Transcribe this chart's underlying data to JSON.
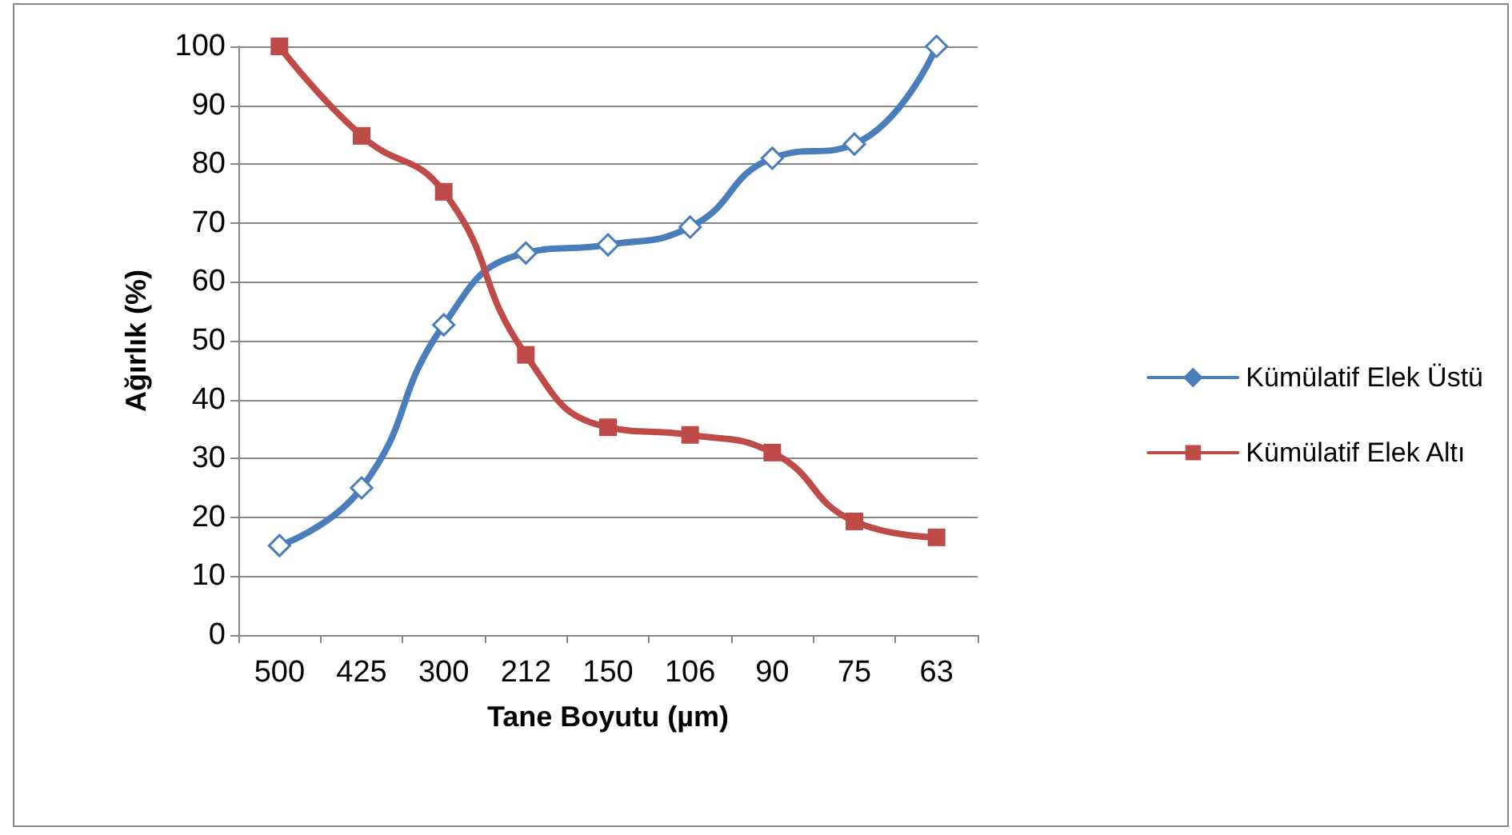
{
  "chart_data": {
    "type": "line",
    "xlabel": "Tane Boyutu (µm)",
    "ylabel": "Ağırlık (%)",
    "categories": [
      "500",
      "425",
      "300",
      "212",
      "150",
      "106",
      "90",
      "75",
      "63"
    ],
    "series": [
      {
        "name": "Kümülatif Elek Üstü",
        "color": "#4a7ebb",
        "marker": "diamond",
        "values": [
          15.2,
          25,
          52.7,
          64.9,
          66.3,
          69.3,
          81,
          83.4,
          100
        ]
      },
      {
        "name": "Kümülatif Elek Altı",
        "color": "#be4b48",
        "marker": "square",
        "values": [
          100,
          84.8,
          75.3,
          47.6,
          35.3,
          34,
          31,
          19.3,
          16.6
        ]
      }
    ],
    "ylim": [
      0,
      100
    ],
    "yticks": [
      0,
      10,
      20,
      30,
      40,
      50,
      60,
      70,
      80,
      90,
      100
    ],
    "grid": "y",
    "legend": "right",
    "line_style": "solid"
  }
}
